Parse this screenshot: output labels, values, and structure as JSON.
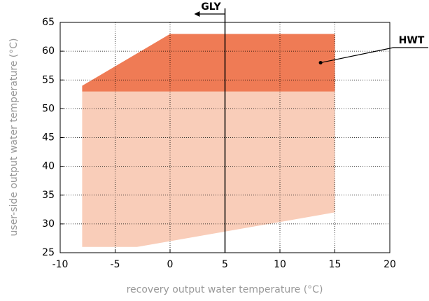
{
  "chart_data": {
    "type": "area",
    "xlabel": "recovery output water temperature (°C)",
    "ylabel": "user-side output water temperature (°C)",
    "xlim": [
      -10,
      20
    ],
    "xticks": [
      -10,
      -5,
      0,
      5,
      10,
      15,
      20
    ],
    "ylim": [
      25,
      65
    ],
    "yticks": [
      25,
      30,
      35,
      40,
      45,
      50,
      55,
      60,
      65
    ],
    "grid": true,
    "series": [
      {
        "color": "#f9cdb9",
        "x": [
          -8,
          -3,
          15,
          15,
          -8
        ],
        "y": [
          26,
          26,
          32,
          53,
          53
        ]
      },
      {
        "color": "#ef7b55",
        "x": [
          -8,
          15,
          15,
          0,
          -8
        ],
        "y": [
          53,
          53,
          63,
          63,
          54
        ]
      }
    ],
    "annotations": [
      {
        "text": "GLY",
        "x": 5
      },
      {
        "text": "HWT",
        "x": 13.7,
        "y": 58
      }
    ]
  }
}
